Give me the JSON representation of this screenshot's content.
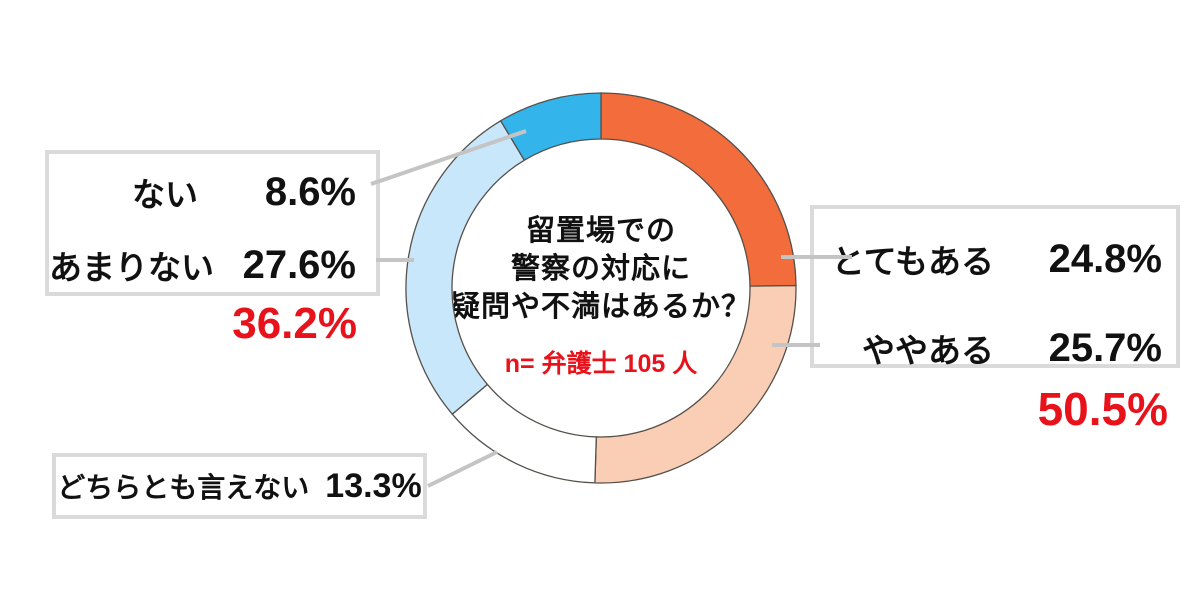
{
  "chart_data": {
    "type": "pie",
    "donut": true,
    "direction": "clockwise",
    "start_angle_deg": 0,
    "title": "留置場での警察の対応に疑問や不満はあるか？",
    "title_lines": [
      "留置場での",
      "警察の対応に",
      "疑問や不満はあるか？"
    ],
    "sample_label": "n= 弁護士 105 人",
    "segments": [
      {
        "key": "totemo-aru",
        "label": "とてもある",
        "value": 24.8,
        "display": "24.8%",
        "color": "#F36C3C"
      },
      {
        "key": "yaya-aru",
        "label": "ややある",
        "value": 25.7,
        "display": "25.7%",
        "color": "#F9CEB4"
      },
      {
        "key": "dochiratomo-ienai",
        "label": "どちらとも言えない",
        "value": 13.3,
        "display": "13.3%",
        "color": "#FFFFFF"
      },
      {
        "key": "amari-nai",
        "label": "あまりない",
        "value": 27.6,
        "display": "27.6%",
        "color": "#C9E7FA"
      },
      {
        "key": "nai",
        "label": "ない",
        "value": 8.6,
        "display": "8.6%",
        "color": "#33B5EC"
      }
    ],
    "group_totals": {
      "aru_side": "50.5%",
      "nai_side": "36.2%"
    },
    "legend_position": "callout-boxes",
    "colors": {
      "accent_red": "#E8121A",
      "leader_line": "#C4C4C4",
      "box_border": "#DADADA",
      "segment_outline": "#55504A"
    }
  }
}
